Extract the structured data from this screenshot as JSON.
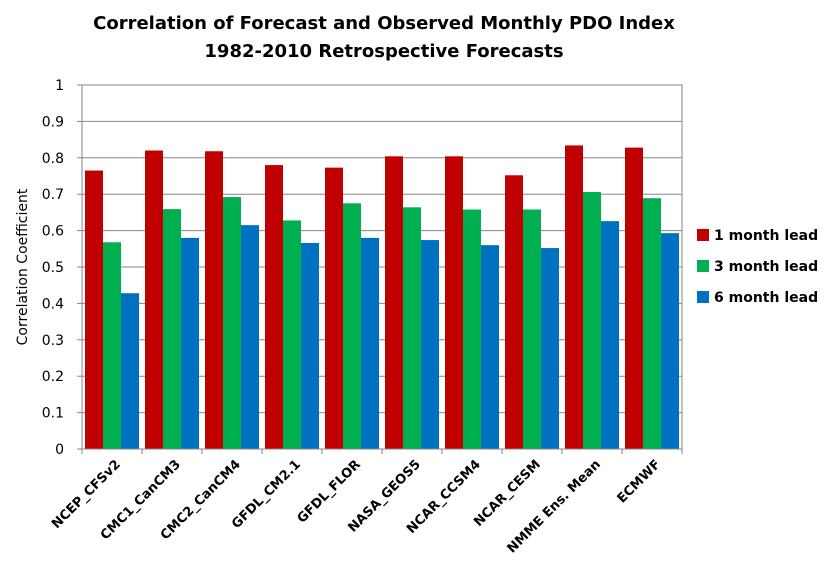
{
  "chart_data": {
    "type": "bar",
    "title": "Correlation of Forecast and Observed Monthly PDO Index",
    "subtitle": "1982-2010 Retrospective Forecasts",
    "xlabel": "",
    "ylabel": "Correlation Coefficient",
    "ylim": [
      0,
      1
    ],
    "yticks": [
      "0",
      "0.1",
      "0.2",
      "0.3",
      "0.4",
      "0.5",
      "0.6",
      "0.7",
      "0.8",
      "0.9",
      "1"
    ],
    "grid": true,
    "legend_position": "right",
    "categories": [
      "NCEP_CFSv2",
      "CMC1_CanCM3",
      "CMC2_CanCM4",
      "GFDL_CM2.1",
      "GFDL_FLOR",
      "NASA_GEOS5",
      "NCAR_CCSM4",
      "NCAR_CESM",
      "NMME Ens. Mean",
      "ECMWF"
    ],
    "series": [
      {
        "name": "1 month lead",
        "color": "#C00000",
        "values": [
          0.765,
          0.82,
          0.818,
          0.78,
          0.773,
          0.804,
          0.804,
          0.752,
          0.834,
          0.828
        ]
      },
      {
        "name": "3 month lead",
        "color": "#00B050",
        "values": [
          0.568,
          0.659,
          0.692,
          0.628,
          0.675,
          0.664,
          0.658,
          0.658,
          0.706,
          0.689
        ]
      },
      {
        "name": "6 month lead",
        "color": "#0070C0",
        "values": [
          0.428,
          0.58,
          0.615,
          0.566,
          0.58,
          0.574,
          0.56,
          0.552,
          0.626,
          0.593
        ]
      }
    ]
  }
}
